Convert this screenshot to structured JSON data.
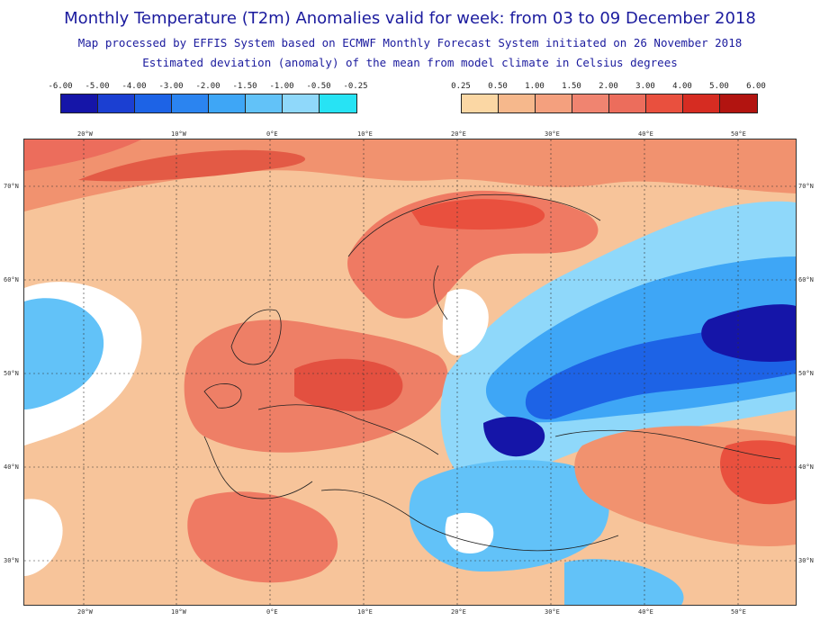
{
  "header": {
    "title": "Monthly Temperature (T2m) Anomalies valid for week: from 03 to 09 December 2018",
    "subtitle1": "Map processed by EFFIS System based on ECMWF Monthly Forecast System initiated on 26 November 2018",
    "subtitle2": "Estimated deviation (anomaly) of the mean from model climate in Celsius degrees"
  },
  "legend_negative": {
    "labels": [
      "-6.00",
      "-5.00",
      "-4.00",
      "-3.00",
      "-2.00",
      "-1.50",
      "-1.00",
      "-0.50",
      "-0.25"
    ],
    "colors": [
      "#1515a8",
      "#1b3fd2",
      "#1d63e6",
      "#2b84f0",
      "#3ea6f6",
      "#62c2f8",
      "#8fd8fa",
      "#27e3f4"
    ]
  },
  "legend_positive": {
    "labels": [
      "0.25",
      "0.50",
      "1.00",
      "1.50",
      "2.00",
      "3.00",
      "4.00",
      "5.00",
      "6.00"
    ],
    "colors": [
      "#fbd7a4",
      "#f6b88c",
      "#f4a07e",
      "#f08470",
      "#ec6d5c",
      "#e9503e",
      "#d62c22",
      "#b21410"
    ]
  },
  "map": {
    "lon_labels": [
      "20°W",
      "10°W",
      "0°E",
      "10°E",
      "20°E",
      "30°E",
      "40°E",
      "50°E"
    ],
    "lat_labels": [
      "70°N",
      "60°N",
      "50°N",
      "40°N",
      "30°N"
    ]
  }
}
